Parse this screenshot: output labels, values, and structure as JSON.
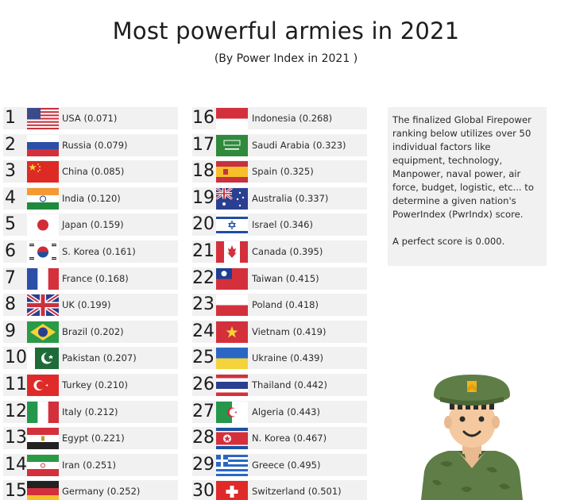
{
  "header": {
    "title": "Most powerful armies in 2021",
    "subtitle": "(By Power Index in 2021 )"
  },
  "info": {
    "paragraph1": "The finalized Global Firepower ranking below utilizes over 50 individual factors like equipment, technology, Manpower, naval power, air force, budget, logistic, etc... to determine a given nation's PowerIndex (PwrIndx) score.",
    "paragraph2": "A perfect score is 0.000."
  },
  "colors": {
    "row_background": "#f1f1f1",
    "text": "#222222"
  },
  "chart_data": {
    "type": "table",
    "title": "Most powerful armies in 2021",
    "subtitle": "(By Power Index in 2021 )",
    "columns": [
      "rank",
      "country",
      "power_index"
    ],
    "rows": [
      {
        "rank": "1",
        "label": "USA (0.071)",
        "country": "USA",
        "value": 0.071,
        "flag": "usa-flag"
      },
      {
        "rank": "2",
        "label": "Russia (0.079)",
        "country": "Russia",
        "value": 0.079,
        "flag": "russia-flag"
      },
      {
        "rank": "3",
        "label": "China (0.085)",
        "country": "China",
        "value": 0.085,
        "flag": "china-flag"
      },
      {
        "rank": "4",
        "label": "India (0.120)",
        "country": "India",
        "value": 0.12,
        "flag": "india-flag"
      },
      {
        "rank": "5",
        "label": "Japan (0.159)",
        "country": "Japan",
        "value": 0.159,
        "flag": "japan-flag"
      },
      {
        "rank": "6",
        "label": "S. Korea (0.161)",
        "country": "S. Korea",
        "value": 0.161,
        "flag": "south-korea-flag"
      },
      {
        "rank": "7",
        "label": "France (0.168)",
        "country": "France",
        "value": 0.168,
        "flag": "france-flag"
      },
      {
        "rank": "8",
        "label": "UK (0.199)",
        "country": "UK",
        "value": 0.199,
        "flag": "uk-flag"
      },
      {
        "rank": "9",
        "label": "Brazil (0.202)",
        "country": "Brazil",
        "value": 0.202,
        "flag": "brazil-flag"
      },
      {
        "rank": "10",
        "label": "Pakistan (0.207)",
        "country": "Pakistan",
        "value": 0.207,
        "flag": "pakistan-flag"
      },
      {
        "rank": "11",
        "label": "Turkey (0.210)",
        "country": "Turkey",
        "value": 0.21,
        "flag": "turkey-flag"
      },
      {
        "rank": "12",
        "label": "Italy (0.212)",
        "country": "Italy",
        "value": 0.212,
        "flag": "italy-flag"
      },
      {
        "rank": "13",
        "label": "Egypt (0.221)",
        "country": "Egypt",
        "value": 0.221,
        "flag": "egypt-flag"
      },
      {
        "rank": "14",
        "label": "Iran (0.251)",
        "country": "Iran",
        "value": 0.251,
        "flag": "iran-flag"
      },
      {
        "rank": "15",
        "label": "Germany (0.252)",
        "country": "Germany",
        "value": 0.252,
        "flag": "germany-flag"
      },
      {
        "rank": "16",
        "label": "Indonesia (0.268)",
        "country": "Indonesia",
        "value": 0.268,
        "flag": "indonesia-flag"
      },
      {
        "rank": "17",
        "label": "Saudi Arabia (0.323)",
        "country": "Saudi Arabia",
        "value": 0.323,
        "flag": "saudi-arabia-flag"
      },
      {
        "rank": "18",
        "label": "Spain (0.325)",
        "country": "Spain",
        "value": 0.325,
        "flag": "spain-flag"
      },
      {
        "rank": "19",
        "label": "Australia (0.337)",
        "country": "Australia",
        "value": 0.337,
        "flag": "australia-flag"
      },
      {
        "rank": "20",
        "label": "Israel (0.346)",
        "country": "Israel",
        "value": 0.346,
        "flag": "israel-flag"
      },
      {
        "rank": "21",
        "label": "Canada (0.395)",
        "country": "Canada",
        "value": 0.395,
        "flag": "canada-flag"
      },
      {
        "rank": "22",
        "label": "Taiwan (0.415)",
        "country": "Taiwan",
        "value": 0.415,
        "flag": "taiwan-flag"
      },
      {
        "rank": "23",
        "label": "Poland (0.418)",
        "country": "Poland",
        "value": 0.418,
        "flag": "poland-flag"
      },
      {
        "rank": "24",
        "label": "Vietnam (0.419)",
        "country": "Vietnam",
        "value": 0.419,
        "flag": "vietnam-flag"
      },
      {
        "rank": "25",
        "label": "Ukraine (0.439)",
        "country": "Ukraine",
        "value": 0.439,
        "flag": "ukraine-flag"
      },
      {
        "rank": "26",
        "label": "Thailand (0.442)",
        "country": "Thailand",
        "value": 0.442,
        "flag": "thailand-flag"
      },
      {
        "rank": "27",
        "label": "Algeria (0.443)",
        "country": "Algeria",
        "value": 0.443,
        "flag": "algeria-flag"
      },
      {
        "rank": "28",
        "label": "N. Korea (0.467)",
        "country": "N. Korea",
        "value": 0.467,
        "flag": "north-korea-flag"
      },
      {
        "rank": "29",
        "label": "Greece (0.495)",
        "country": "Greece",
        "value": 0.495,
        "flag": "greece-flag"
      },
      {
        "rank": "30",
        "label": "Switzerland (0.501)",
        "country": "Switzerland",
        "value": 0.501,
        "flag": "switzerland-flag"
      }
    ]
  },
  "illustration": {
    "icon": "soldier-icon"
  }
}
